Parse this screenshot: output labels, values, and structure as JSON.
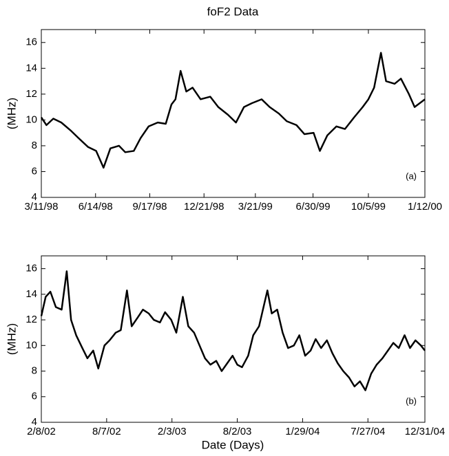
{
  "chart_data": [
    {
      "type": "line",
      "title": "foF2 Data",
      "y_label": "(MHz)",
      "annotation": "(a)",
      "color": "#000000",
      "xlim": [
        "1998-03-11",
        "2000-01-12"
      ],
      "xticks": [
        {
          "value": "1998-03-11",
          "label": "3/11/98"
        },
        {
          "value": "1998-06-14",
          "label": "6/14/98"
        },
        {
          "value": "1998-09-17",
          "label": "9/17/98"
        },
        {
          "value": "1998-12-21",
          "label": "12/21/98"
        },
        {
          "value": "1999-03-21",
          "label": "3/21/99"
        },
        {
          "value": "1999-06-30",
          "label": "6/30/99"
        },
        {
          "value": "1999-10-05",
          "label": "10/5/99"
        },
        {
          "value": "2000-01-12",
          "label": "1/12/00"
        }
      ],
      "ylim": [
        4,
        17
      ],
      "yticks": [
        4,
        6,
        8,
        10,
        12,
        14,
        16
      ],
      "x": [
        "1998-03-11",
        "1998-03-20",
        "1998-04-01",
        "1998-04-15",
        "1998-05-01",
        "1998-05-15",
        "1998-06-01",
        "1998-06-15",
        "1998-06-28",
        "1998-07-10",
        "1998-07-25",
        "1998-08-05",
        "1998-08-20",
        "1998-09-01",
        "1998-09-15",
        "1998-10-01",
        "1998-10-15",
        "1998-10-25",
        "1998-11-01",
        "1998-11-10",
        "1998-11-20",
        "1998-12-01",
        "1998-12-15",
        "1999-01-01",
        "1999-01-15",
        "1999-02-01",
        "1999-02-15",
        "1999-03-01",
        "1999-03-15",
        "1999-04-01",
        "1999-04-15",
        "1999-05-01",
        "1999-05-15",
        "1999-06-01",
        "1999-06-15",
        "1999-07-01",
        "1999-07-12",
        "1999-07-25",
        "1999-08-10",
        "1999-08-25",
        "1999-09-10",
        "1999-09-25",
        "1999-10-05",
        "1999-10-15",
        "1999-10-27",
        "1999-11-05",
        "1999-11-20",
        "1999-12-01",
        "1999-12-15",
        "1999-12-25",
        "2000-01-12"
      ],
      "values": [
        10.2,
        9.6,
        10.1,
        9.8,
        9.2,
        8.6,
        7.9,
        7.6,
        6.3,
        7.8,
        8.0,
        7.5,
        7.6,
        8.6,
        9.5,
        9.8,
        9.7,
        11.2,
        11.6,
        13.8,
        12.2,
        12.5,
        11.6,
        11.8,
        11.0,
        10.4,
        9.8,
        11.0,
        11.3,
        11.6,
        11.0,
        10.5,
        9.9,
        9.6,
        8.9,
        9.0,
        7.6,
        8.8,
        9.5,
        9.3,
        10.2,
        11.0,
        11.6,
        12.5,
        15.2,
        13.0,
        12.8,
        13.2,
        12.0,
        11.0,
        11.6
      ]
    },
    {
      "type": "line",
      "y_label": "(MHz)",
      "x_label": "Date (Days)",
      "annotation": "(b)",
      "color": "#000000",
      "xlim": [
        "2002-02-08",
        "2004-12-31"
      ],
      "xticks": [
        {
          "value": "2002-02-08",
          "label": "2/8/02"
        },
        {
          "value": "2002-08-07",
          "label": "8/7/02"
        },
        {
          "value": "2003-02-03",
          "label": "2/3/03"
        },
        {
          "value": "2003-08-02",
          "label": "8/2/03"
        },
        {
          "value": "2004-01-29",
          "label": "1/29/04"
        },
        {
          "value": "2004-07-27",
          "label": "7/27/04"
        },
        {
          "value": "2004-12-31",
          "label": "12/31/04"
        }
      ],
      "ylim": [
        4,
        17
      ],
      "yticks": [
        4,
        6,
        8,
        10,
        12,
        14,
        16
      ],
      "x": [
        "2002-02-08",
        "2002-02-20",
        "2002-03-05",
        "2002-03-20",
        "2002-04-05",
        "2002-04-19",
        "2002-05-01",
        "2002-05-15",
        "2002-06-01",
        "2002-06-15",
        "2002-07-01",
        "2002-07-15",
        "2002-08-01",
        "2002-08-15",
        "2002-09-01",
        "2002-09-15",
        "2002-10-02",
        "2002-10-15",
        "2002-11-01",
        "2002-11-15",
        "2002-12-01",
        "2002-12-15",
        "2003-01-01",
        "2003-01-15",
        "2003-02-01",
        "2003-02-15",
        "2003-03-05",
        "2003-03-20",
        "2003-04-05",
        "2003-04-20",
        "2003-05-05",
        "2003-05-20",
        "2003-06-05",
        "2003-06-20",
        "2003-07-05",
        "2003-07-20",
        "2003-08-02",
        "2003-08-15",
        "2003-09-01",
        "2003-09-15",
        "2003-10-01",
        "2003-10-24",
        "2003-11-05",
        "2003-11-20",
        "2003-12-05",
        "2003-12-20",
        "2004-01-05",
        "2004-01-20",
        "2004-02-05",
        "2004-02-20",
        "2004-03-05",
        "2004-03-20",
        "2004-04-05",
        "2004-04-20",
        "2004-05-05",
        "2004-05-20",
        "2004-06-05",
        "2004-06-20",
        "2004-07-05",
        "2004-07-20",
        "2004-08-05",
        "2004-08-20",
        "2004-09-05",
        "2004-09-20",
        "2004-10-05",
        "2004-10-20",
        "2004-11-05",
        "2004-11-20",
        "2004-12-05",
        "2004-12-20",
        "2004-12-31"
      ],
      "values": [
        12.3,
        13.8,
        14.2,
        13.0,
        12.8,
        15.8,
        12.0,
        10.8,
        9.8,
        9.0,
        9.6,
        8.2,
        10.0,
        10.4,
        11.0,
        11.2,
        14.3,
        11.5,
        12.2,
        12.8,
        12.5,
        12.0,
        11.8,
        12.6,
        12.0,
        11.0,
        13.8,
        11.5,
        11.0,
        10.0,
        9.0,
        8.5,
        8.8,
        8.0,
        8.6,
        9.2,
        8.5,
        8.3,
        9.2,
        10.8,
        11.5,
        14.3,
        12.5,
        12.8,
        11.0,
        9.8,
        10.0,
        10.8,
        9.2,
        9.6,
        10.5,
        9.8,
        10.4,
        9.4,
        8.6,
        8.0,
        7.5,
        6.8,
        7.2,
        6.5,
        7.8,
        8.5,
        9.0,
        9.6,
        10.2,
        9.8,
        10.8,
        9.8,
        10.4,
        10.0,
        9.6
      ]
    }
  ]
}
